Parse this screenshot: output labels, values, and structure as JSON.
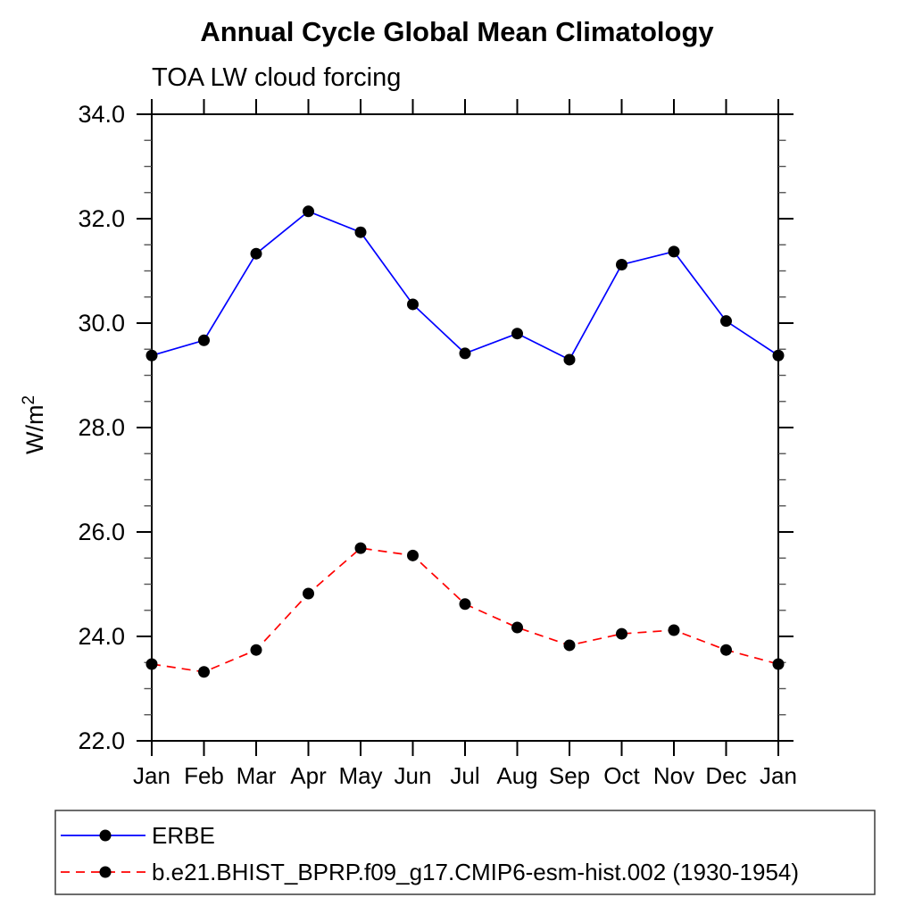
{
  "title": "Annual Cycle Global Mean Climatology",
  "subtitle": "TOA LW cloud forcing",
  "ylabel": {
    "base": "W/m",
    "exponent": "2"
  },
  "chart_data": {
    "type": "line",
    "categories": [
      "Jan",
      "Feb",
      "Mar",
      "Apr",
      "May",
      "Jun",
      "Jul",
      "Aug",
      "Sep",
      "Oct",
      "Nov",
      "Dec",
      "Jan"
    ],
    "series": [
      {
        "name": "ERBE",
        "color": "#0000ff",
        "line_style": "solid",
        "marker": "filled-circle",
        "marker_color": "#000000",
        "values": [
          29.38,
          29.67,
          31.33,
          32.14,
          31.74,
          30.36,
          29.42,
          29.8,
          29.3,
          31.12,
          31.37,
          30.04,
          29.38
        ]
      },
      {
        "name": "b.e21.BHIST_BPRP.f09_g17.CMIP6-esm-hist.002 (1930-1954)",
        "color": "#ff0000",
        "line_style": "dashed",
        "marker": "filled-circle",
        "marker_color": "#000000",
        "values": [
          23.47,
          23.32,
          23.74,
          24.82,
          25.69,
          25.55,
          24.62,
          24.17,
          23.83,
          24.05,
          24.12,
          23.74,
          23.47
        ]
      }
    ],
    "xlabel": "",
    "ylabel": "W/m2",
    "ylim": [
      22.0,
      34.0
    ],
    "ytick_major_interval": 2.0,
    "ytick_minor_interval": 0.5,
    "ytick_labels": [
      "22.0",
      "24.0",
      "26.0",
      "28.0",
      "30.0",
      "32.0",
      "34.0"
    ],
    "grid": false,
    "legend_position": "bottom"
  }
}
